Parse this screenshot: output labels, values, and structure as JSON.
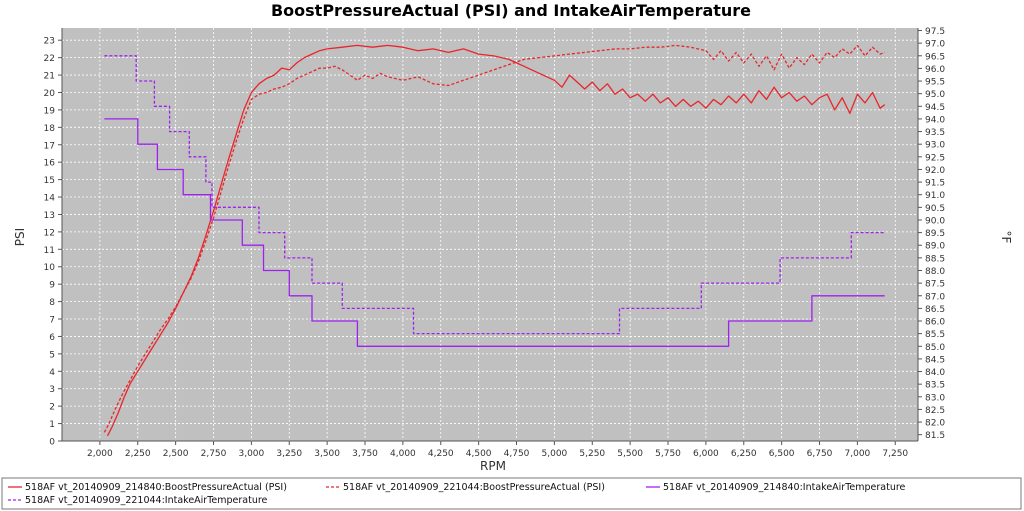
{
  "chart_data": {
    "type": "line",
    "title": "BoostPressureActual (PSI) and IntakeAirTemperature",
    "xlabel": "RPM",
    "ylabel": "PSI",
    "y2label": "°F",
    "xlim": [
      1750,
      7400
    ],
    "ylim": [
      0,
      23.7
    ],
    "y2lim": [
      81.25,
      97.6
    ],
    "xticks": [
      2000,
      2250,
      2500,
      2750,
      3000,
      3250,
      3500,
      3750,
      4000,
      4250,
      4500,
      4750,
      5000,
      5250,
      5500,
      5750,
      6000,
      6250,
      6500,
      6750,
      7000,
      7250
    ],
    "xtick_labels": [
      "2,000",
      "2,250",
      "2,500",
      "2,750",
      "3,000",
      "3,250",
      "3,500",
      "3,750",
      "4,000",
      "4,250",
      "4,500",
      "4,750",
      "5,000",
      "5,250",
      "5,500",
      "5,750",
      "6,000",
      "6,250",
      "6,500",
      "6,750",
      "7,000",
      "7,250"
    ],
    "yticks": [
      0,
      1,
      2,
      3,
      4,
      5,
      6,
      7,
      8,
      9,
      10,
      11,
      12,
      13,
      14,
      15,
      16,
      17,
      18,
      19,
      20,
      21,
      22,
      23
    ],
    "ytick_labels": [
      "0",
      "1",
      "2",
      "3",
      "4",
      "5",
      "6",
      "7",
      "8",
      "9",
      "10",
      "11",
      "12",
      "13",
      "14",
      "15",
      "16",
      "17",
      "18",
      "19",
      "20",
      "21",
      "22",
      "23"
    ],
    "y2ticks": [
      81.5,
      82.0,
      82.5,
      83.0,
      83.5,
      84.0,
      84.5,
      85.0,
      85.5,
      86.0,
      86.5,
      87.0,
      87.5,
      88.0,
      88.5,
      89.0,
      89.5,
      90.0,
      90.5,
      91.0,
      91.5,
      92.0,
      92.5,
      93.0,
      93.5,
      94.0,
      94.5,
      95.0,
      95.5,
      96.0,
      96.5,
      97.0,
      97.5
    ],
    "y2tick_labels": [
      "81.5",
      "82.0",
      "82.5",
      "83.0",
      "83.5",
      "84.0",
      "84.5",
      "85.0",
      "85.5",
      "86.0",
      "86.5",
      "87.0",
      "87.5",
      "88.0",
      "88.5",
      "89.0",
      "89.5",
      "90.0",
      "90.5",
      "91.0",
      "91.5",
      "92.0",
      "92.5",
      "93.0",
      "93.5",
      "94.0",
      "94.5",
      "95.0",
      "95.5",
      "96.0",
      "96.5",
      "97.0",
      "97.5"
    ],
    "grid": true,
    "legend_position": "bottom",
    "colors": {
      "plot_bg": "#c0c0c0",
      "grid": "#ffffff",
      "boost": "#e8262b",
      "temp": "#a020f0"
    },
    "series": [
      {
        "name": "518AF vt_20140909_214840:BoostPressureActual (PSI)",
        "axis": "left",
        "color": "#e8262b",
        "dash": "solid",
        "points": [
          [
            2050,
            0.3
          ],
          [
            2080,
            0.8
          ],
          [
            2120,
            1.6
          ],
          [
            2160,
            2.5
          ],
          [
            2200,
            3.3
          ],
          [
            2250,
            4.0
          ],
          [
            2300,
            4.7
          ],
          [
            2350,
            5.4
          ],
          [
            2400,
            6.1
          ],
          [
            2450,
            6.8
          ],
          [
            2500,
            7.6
          ],
          [
            2550,
            8.5
          ],
          [
            2600,
            9.4
          ],
          [
            2650,
            10.5
          ],
          [
            2700,
            11.8
          ],
          [
            2750,
            13.2
          ],
          [
            2800,
            14.7
          ],
          [
            2850,
            16.2
          ],
          [
            2900,
            17.6
          ],
          [
            2950,
            19.0
          ],
          [
            3000,
            20.0
          ],
          [
            3050,
            20.5
          ],
          [
            3100,
            20.8
          ],
          [
            3150,
            21.0
          ],
          [
            3200,
            21.4
          ],
          [
            3250,
            21.3
          ],
          [
            3300,
            21.7
          ],
          [
            3350,
            22.0
          ],
          [
            3400,
            22.2
          ],
          [
            3450,
            22.4
          ],
          [
            3500,
            22.5
          ],
          [
            3600,
            22.6
          ],
          [
            3700,
            22.7
          ],
          [
            3800,
            22.6
          ],
          [
            3900,
            22.7
          ],
          [
            4000,
            22.6
          ],
          [
            4100,
            22.4
          ],
          [
            4200,
            22.5
          ],
          [
            4300,
            22.3
          ],
          [
            4400,
            22.5
          ],
          [
            4500,
            22.2
          ],
          [
            4600,
            22.1
          ],
          [
            4700,
            21.9
          ],
          [
            4750,
            21.7
          ],
          [
            4800,
            21.5
          ],
          [
            4900,
            21.1
          ],
          [
            5000,
            20.7
          ],
          [
            5050,
            20.3
          ],
          [
            5100,
            21.0
          ],
          [
            5150,
            20.6
          ],
          [
            5200,
            20.2
          ],
          [
            5250,
            20.6
          ],
          [
            5300,
            20.1
          ],
          [
            5350,
            20.5
          ],
          [
            5400,
            19.9
          ],
          [
            5450,
            20.2
          ],
          [
            5500,
            19.7
          ],
          [
            5550,
            19.9
          ],
          [
            5600,
            19.5
          ],
          [
            5650,
            19.9
          ],
          [
            5700,
            19.4
          ],
          [
            5750,
            19.7
          ],
          [
            5800,
            19.2
          ],
          [
            5850,
            19.6
          ],
          [
            5900,
            19.2
          ],
          [
            5950,
            19.5
          ],
          [
            6000,
            19.1
          ],
          [
            6050,
            19.6
          ],
          [
            6100,
            19.3
          ],
          [
            6150,
            19.8
          ],
          [
            6200,
            19.4
          ],
          [
            6250,
            19.9
          ],
          [
            6300,
            19.4
          ],
          [
            6350,
            20.1
          ],
          [
            6400,
            19.6
          ],
          [
            6450,
            20.3
          ],
          [
            6500,
            19.7
          ],
          [
            6550,
            20.0
          ],
          [
            6600,
            19.5
          ],
          [
            6650,
            19.8
          ],
          [
            6700,
            19.3
          ],
          [
            6750,
            19.7
          ],
          [
            6800,
            19.9
          ],
          [
            6850,
            19.0
          ],
          [
            6900,
            19.7
          ],
          [
            6950,
            18.8
          ],
          [
            7000,
            19.9
          ],
          [
            7050,
            19.4
          ],
          [
            7100,
            20.0
          ],
          [
            7150,
            19.1
          ],
          [
            7180,
            19.3
          ]
        ]
      },
      {
        "name": "518AF vt_20140909_221044:BoostPressureActual (PSI)",
        "axis": "left",
        "color": "#e8262b",
        "dash": "dashed",
        "points": [
          [
            2030,
            0.5
          ],
          [
            2060,
            1.0
          ],
          [
            2100,
            1.8
          ],
          [
            2150,
            2.7
          ],
          [
            2200,
            3.5
          ],
          [
            2250,
            4.3
          ],
          [
            2300,
            5.0
          ],
          [
            2350,
            5.7
          ],
          [
            2400,
            6.4
          ],
          [
            2450,
            7.0
          ],
          [
            2500,
            7.7
          ],
          [
            2550,
            8.5
          ],
          [
            2600,
            9.3
          ],
          [
            2650,
            10.3
          ],
          [
            2700,
            11.5
          ],
          [
            2750,
            12.8
          ],
          [
            2800,
            14.3
          ],
          [
            2850,
            15.8
          ],
          [
            2900,
            17.2
          ],
          [
            2950,
            18.5
          ],
          [
            3000,
            19.6
          ],
          [
            3050,
            19.9
          ],
          [
            3100,
            20.0
          ],
          [
            3150,
            20.2
          ],
          [
            3200,
            20.3
          ],
          [
            3250,
            20.5
          ],
          [
            3300,
            20.8
          ],
          [
            3350,
            21.0
          ],
          [
            3400,
            21.2
          ],
          [
            3450,
            21.4
          ],
          [
            3500,
            21.4
          ],
          [
            3550,
            21.5
          ],
          [
            3600,
            21.3
          ],
          [
            3650,
            21.0
          ],
          [
            3700,
            20.7
          ],
          [
            3750,
            21.0
          ],
          [
            3800,
            20.8
          ],
          [
            3850,
            21.1
          ],
          [
            3900,
            20.9
          ],
          [
            4000,
            20.7
          ],
          [
            4100,
            20.9
          ],
          [
            4200,
            20.5
          ],
          [
            4300,
            20.4
          ],
          [
            4400,
            20.7
          ],
          [
            4500,
            21.0
          ],
          [
            4600,
            21.3
          ],
          [
            4700,
            21.6
          ],
          [
            4800,
            21.9
          ],
          [
            4900,
            22.0
          ],
          [
            5000,
            22.1
          ],
          [
            5100,
            22.2
          ],
          [
            5200,
            22.3
          ],
          [
            5300,
            22.4
          ],
          [
            5400,
            22.5
          ],
          [
            5500,
            22.5
          ],
          [
            5600,
            22.6
          ],
          [
            5700,
            22.6
          ],
          [
            5800,
            22.7
          ],
          [
            5900,
            22.6
          ],
          [
            6000,
            22.4
          ],
          [
            6050,
            21.9
          ],
          [
            6100,
            22.4
          ],
          [
            6150,
            21.8
          ],
          [
            6200,
            22.3
          ],
          [
            6250,
            21.7
          ],
          [
            6300,
            22.2
          ],
          [
            6350,
            21.5
          ],
          [
            6400,
            22.1
          ],
          [
            6450,
            21.3
          ],
          [
            6500,
            22.2
          ],
          [
            6550,
            21.4
          ],
          [
            6600,
            22.0
          ],
          [
            6650,
            21.6
          ],
          [
            6700,
            22.2
          ],
          [
            6750,
            21.7
          ],
          [
            6800,
            22.3
          ],
          [
            6850,
            22.0
          ],
          [
            6900,
            22.5
          ],
          [
            6950,
            22.2
          ],
          [
            7000,
            22.7
          ],
          [
            7050,
            22.1
          ],
          [
            7100,
            22.6
          ],
          [
            7150,
            22.2
          ],
          [
            7180,
            22.3
          ]
        ]
      },
      {
        "name": "518AF vt_20140909_214840:IntakeAirTemperature",
        "axis": "right",
        "color": "#a020f0",
        "dash": "solid",
        "points": [
          [
            2030,
            94.0
          ],
          [
            2250,
            94.0
          ],
          [
            2250,
            93.0
          ],
          [
            2380,
            93.0
          ],
          [
            2380,
            92.0
          ],
          [
            2550,
            92.0
          ],
          [
            2550,
            91.0
          ],
          [
            2730,
            91.0
          ],
          [
            2730,
            90.0
          ],
          [
            2940,
            90.0
          ],
          [
            2940,
            89.0
          ],
          [
            3080,
            89.0
          ],
          [
            3080,
            88.0
          ],
          [
            3250,
            88.0
          ],
          [
            3250,
            87.0
          ],
          [
            3400,
            87.0
          ],
          [
            3400,
            86.0
          ],
          [
            3700,
            86.0
          ],
          [
            3700,
            85.0
          ],
          [
            5400,
            85.0
          ],
          [
            5400,
            85.0
          ],
          [
            6150,
            85.0
          ],
          [
            6150,
            86.0
          ],
          [
            6700,
            86.0
          ],
          [
            6700,
            87.0
          ],
          [
            7180,
            87.0
          ]
        ]
      },
      {
        "name": "518AF vt_20140909_221044:IntakeAirTemperature",
        "axis": "right",
        "color": "#a020f0",
        "dash": "dashed",
        "points": [
          [
            2030,
            96.5
          ],
          [
            2240,
            96.5
          ],
          [
            2240,
            95.5
          ],
          [
            2360,
            95.5
          ],
          [
            2360,
            94.5
          ],
          [
            2460,
            94.5
          ],
          [
            2460,
            93.5
          ],
          [
            2590,
            93.5
          ],
          [
            2590,
            92.5
          ],
          [
            2700,
            92.5
          ],
          [
            2700,
            91.5
          ],
          [
            2740,
            91.5
          ],
          [
            2740,
            90.5
          ],
          [
            3050,
            90.5
          ],
          [
            3050,
            89.5
          ],
          [
            3220,
            89.5
          ],
          [
            3220,
            88.5
          ],
          [
            3400,
            88.5
          ],
          [
            3400,
            87.5
          ],
          [
            3600,
            87.5
          ],
          [
            3600,
            86.5
          ],
          [
            4070,
            86.5
          ],
          [
            4070,
            85.5
          ],
          [
            5430,
            85.5
          ],
          [
            5430,
            86.5
          ],
          [
            5970,
            86.5
          ],
          [
            5970,
            87.5
          ],
          [
            6490,
            87.5
          ],
          [
            6490,
            88.5
          ],
          [
            6960,
            88.5
          ],
          [
            6960,
            89.5
          ],
          [
            7180,
            89.5
          ]
        ]
      }
    ]
  }
}
